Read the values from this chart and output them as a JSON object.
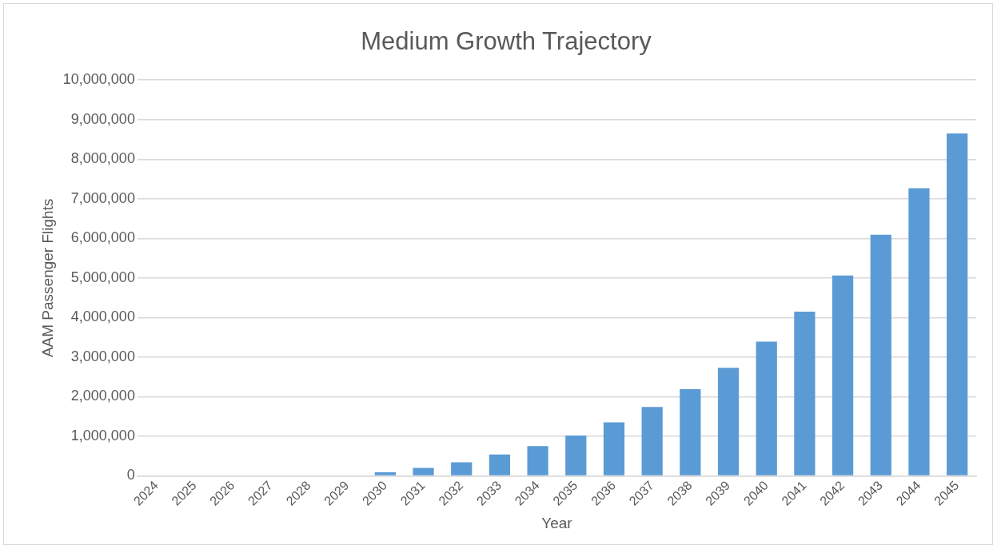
{
  "chart_data": {
    "type": "bar",
    "title": "Medium Growth Trajectory",
    "xlabel": "Year",
    "ylabel": "AAM Passenger Flights",
    "categories": [
      "2024",
      "2025",
      "2026",
      "2027",
      "2028",
      "2029",
      "2030",
      "2031",
      "2032",
      "2033",
      "2034",
      "2035",
      "2036",
      "2037",
      "2038",
      "2039",
      "2040",
      "2041",
      "2042",
      "2043",
      "2044",
      "2045"
    ],
    "values": [
      0,
      0,
      0,
      0,
      0,
      0,
      90000,
      200000,
      340000,
      540000,
      750000,
      1020000,
      1350000,
      1740000,
      2190000,
      2730000,
      3390000,
      4150000,
      5060000,
      6090000,
      7270000,
      8650000
    ],
    "color": "#5b9bd5",
    "ylim": [
      0,
      10000000
    ],
    "yticks": [
      {
        "value": 0,
        "label": "0"
      },
      {
        "value": 1000000,
        "label": "1,000,000"
      },
      {
        "value": 2000000,
        "label": "2,000,000"
      },
      {
        "value": 3000000,
        "label": "3,000,000"
      },
      {
        "value": 4000000,
        "label": "4,000,000"
      },
      {
        "value": 5000000,
        "label": "5,000,000"
      },
      {
        "value": 6000000,
        "label": "6,000,000"
      },
      {
        "value": 7000000,
        "label": "7,000,000"
      },
      {
        "value": 8000000,
        "label": "8,000,000"
      },
      {
        "value": 9000000,
        "label": "9,000,000"
      },
      {
        "value": 10000000,
        "label": "10,000,000"
      }
    ],
    "grid": "y",
    "legend": false
  }
}
